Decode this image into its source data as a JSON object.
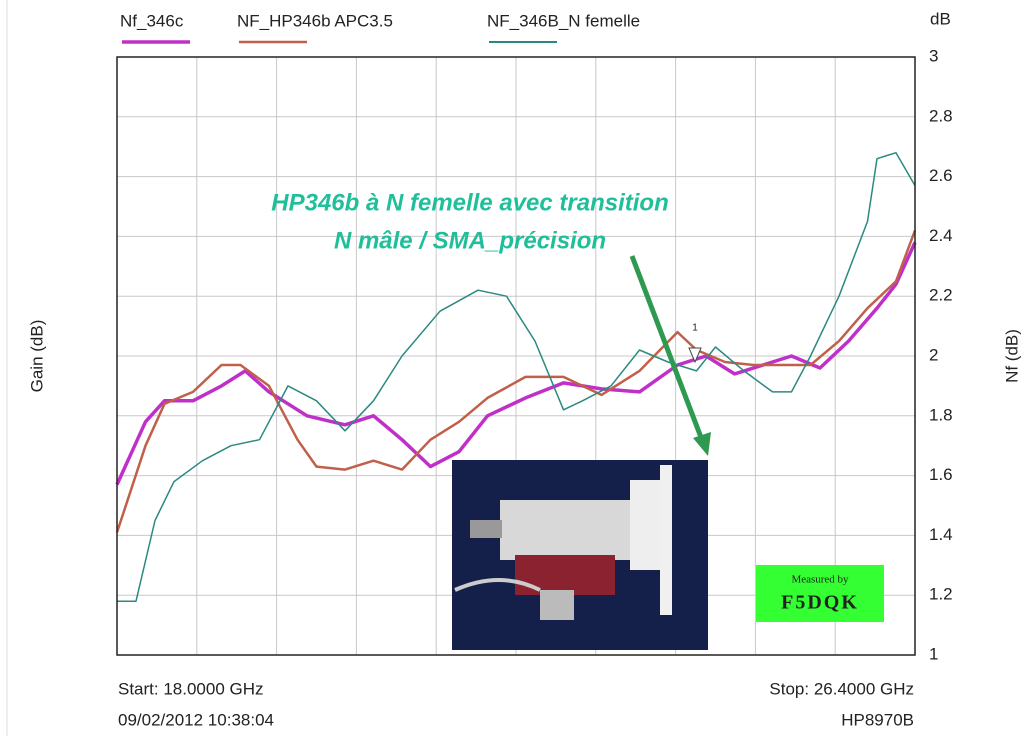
{
  "chart_data": {
    "type": "line",
    "y_unit": "dB",
    "y_label_left": "Gain (dB)",
    "y_label_right": "Nf (dB)",
    "xlim": [
      18,
      26.4
    ],
    "ylim": [
      1,
      3
    ],
    "yticks": [
      1,
      1.2,
      1.4,
      1.6,
      1.8,
      2,
      2.2,
      2.4,
      2.6,
      2.8,
      3
    ],
    "x_divisions": 10,
    "grid": true,
    "start_label": "Start: 18.0000 GHz",
    "stop_label": "Stop: 26.4000 GHz",
    "timestamp": "09/02/2012 10:38:04",
    "instrument": "HP8970B",
    "annotation": [
      "HP346b à N femelle avec transition",
      "N mâle / SMA_précision"
    ],
    "marker_label": "1",
    "stamp": [
      "Measured by",
      "F5DQK"
    ],
    "series": [
      {
        "name": "Nf_346c",
        "color": "#c030c8",
        "width": 3.5,
        "x": [
          18.0,
          18.3,
          18.5,
          18.8,
          19.1,
          19.35,
          19.6,
          20.0,
          20.4,
          20.7,
          21.0,
          21.3,
          21.6,
          21.9,
          22.3,
          22.7,
          23.1,
          23.5,
          23.9,
          24.2,
          24.5,
          24.8,
          25.1,
          25.4,
          25.7,
          26.0,
          26.2,
          26.4
        ],
        "values": [
          1.57,
          1.78,
          1.85,
          1.85,
          1.9,
          1.95,
          1.88,
          1.8,
          1.77,
          1.8,
          1.72,
          1.63,
          1.68,
          1.8,
          1.86,
          1.91,
          1.89,
          1.88,
          1.97,
          2.0,
          1.94,
          1.97,
          2.0,
          1.96,
          2.05,
          2.16,
          2.24,
          2.38
        ]
      },
      {
        "name": "NF_HP346b APC3.5",
        "color": "#c0604a",
        "width": 2.5,
        "x": [
          18.0,
          18.3,
          18.5,
          18.8,
          19.1,
          19.3,
          19.6,
          19.9,
          20.1,
          20.4,
          20.7,
          21.0,
          21.3,
          21.6,
          21.9,
          22.3,
          22.7,
          23.1,
          23.5,
          23.9,
          24.1,
          24.4,
          24.7,
          25.0,
          25.3,
          25.6,
          25.9,
          26.2,
          26.4
        ],
        "values": [
          1.41,
          1.7,
          1.84,
          1.88,
          1.97,
          1.97,
          1.9,
          1.72,
          1.63,
          1.62,
          1.65,
          1.62,
          1.72,
          1.78,
          1.86,
          1.93,
          1.93,
          1.87,
          1.95,
          2.08,
          2.02,
          1.98,
          1.97,
          1.97,
          1.97,
          2.05,
          2.16,
          2.25,
          2.42
        ]
      },
      {
        "name": "NF_346B_N femelle",
        "color": "#2a8a80",
        "width": 1.5,
        "x": [
          18.0,
          18.2,
          18.4,
          18.6,
          18.9,
          19.2,
          19.5,
          19.8,
          20.1,
          20.4,
          20.7,
          21.0,
          21.4,
          21.8,
          22.1,
          22.4,
          22.7,
          22.9,
          23.2,
          23.5,
          23.8,
          24.1,
          24.3,
          24.6,
          24.9,
          25.1,
          25.3,
          25.6,
          25.9,
          26.0,
          26.2,
          26.4
        ],
        "values": [
          1.18,
          1.18,
          1.45,
          1.58,
          1.65,
          1.7,
          1.72,
          1.9,
          1.85,
          1.75,
          1.85,
          2.0,
          2.15,
          2.22,
          2.2,
          2.05,
          1.82,
          1.85,
          1.9,
          2.02,
          1.98,
          1.95,
          2.03,
          1.95,
          1.88,
          1.88,
          2.0,
          2.2,
          2.45,
          2.66,
          2.68,
          2.57
        ]
      }
    ]
  }
}
